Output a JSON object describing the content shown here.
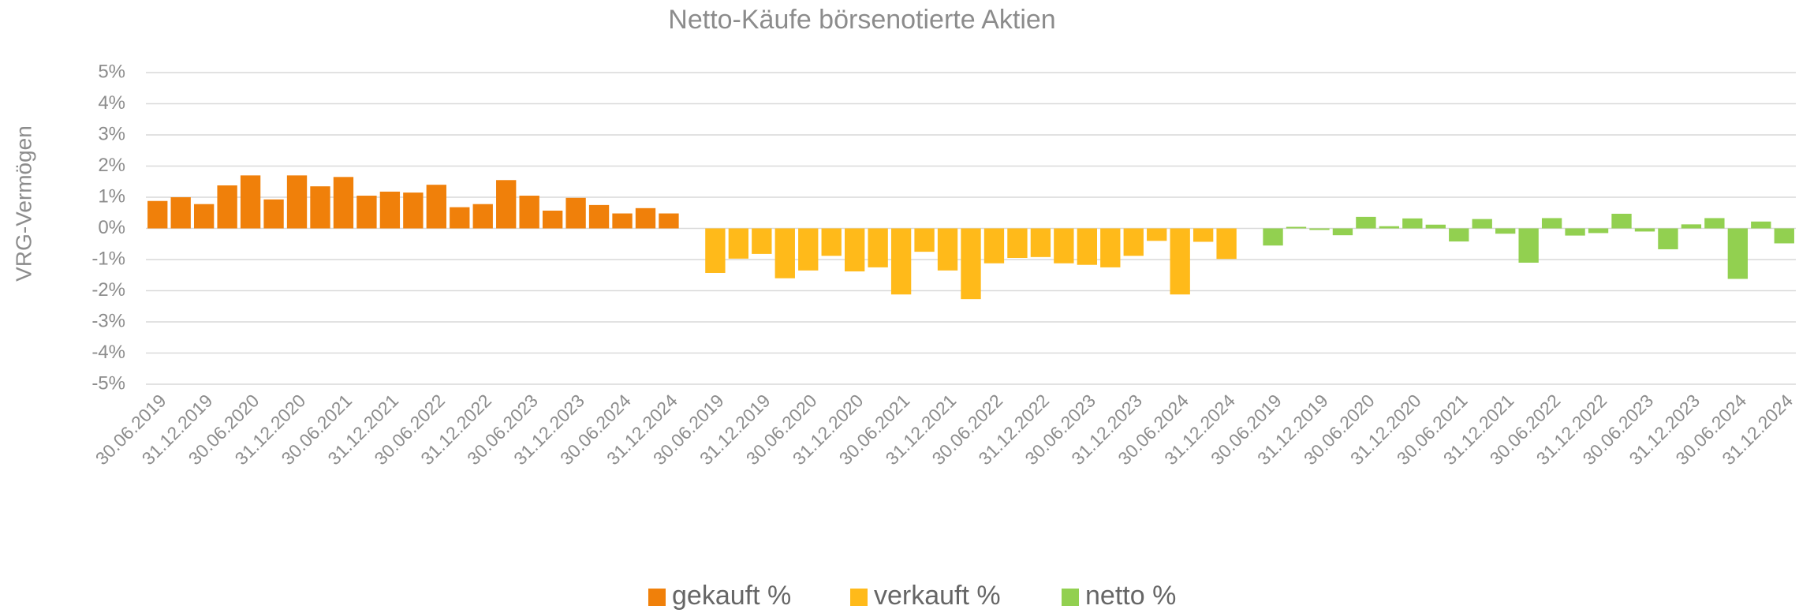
{
  "chart_data": {
    "type": "bar",
    "title": "Netto-Käufe börsenotierte Aktien",
    "y_label": "VRG-Vermögen",
    "categories": [
      "30.06.2019",
      null,
      "31.12.2019",
      null,
      "30.06.2020",
      null,
      "31.12.2020",
      null,
      "30.06.2021",
      null,
      "31.12.2021",
      null,
      "30.06.2022",
      null,
      "31.12.2022",
      null,
      "30.06.2023",
      null,
      "31.12.2023",
      null,
      "30.06.2024",
      null,
      "31.12.2024",
      null,
      "30.06.2019",
      null,
      "31.12.2019",
      null,
      "30.06.2020",
      null,
      "31.12.2020",
      null,
      "30.06.2021",
      null,
      "31.12.2021",
      null,
      "30.06.2022",
      null,
      "31.12.2022",
      null,
      "30.06.2023",
      null,
      "31.12.2023",
      null,
      "30.06.2024",
      null,
      "31.12.2024",
      null,
      "30.06.2019",
      null,
      "31.12.2019",
      null,
      "30.06.2020",
      null,
      "31.12.2020",
      null,
      "30.06.2021",
      null,
      "31.12.2021",
      null,
      "30.06.2022",
      null,
      "31.12.2022",
      null,
      "30.06.2023",
      null,
      "31.12.2023",
      null,
      "30.06.2024",
      null,
      "31.12.2024"
    ],
    "series": [
      {
        "name": "gekauft %",
        "color": "#f0800a",
        "values": [
          0.88,
          1.0,
          0.78,
          1.38,
          1.7,
          0.93,
          1.7,
          1.35,
          1.65,
          1.05,
          1.18,
          1.15,
          1.4,
          0.68,
          0.78,
          1.55,
          1.05,
          0.57,
          0.98,
          0.75,
          0.48,
          0.65,
          0.48,
          null,
          null,
          null,
          null,
          null,
          null,
          null,
          null,
          null,
          null,
          null,
          null,
          null,
          null,
          null,
          null,
          null,
          null,
          null,
          null,
          null,
          null,
          null,
          null,
          null,
          null,
          null,
          null,
          null,
          null,
          null,
          null,
          null,
          null,
          null,
          null,
          null,
          null,
          null,
          null,
          null,
          null,
          null,
          null,
          null,
          null,
          null,
          null
        ]
      },
      {
        "name": "verkauft %",
        "color": "#ffba1a",
        "values": [
          null,
          null,
          null,
          null,
          null,
          null,
          null,
          null,
          null,
          null,
          null,
          null,
          null,
          null,
          null,
          null,
          null,
          null,
          null,
          null,
          null,
          null,
          null,
          null,
          -1.43,
          -0.97,
          -0.82,
          -1.6,
          -1.35,
          -0.88,
          -1.38,
          -1.25,
          -2.12,
          -0.75,
          -1.35,
          -2.27,
          -1.12,
          -0.95,
          -0.92,
          -1.12,
          -1.17,
          -1.25,
          -0.88,
          -0.4,
          -2.12,
          -0.43,
          -0.98,
          null,
          null,
          null,
          null,
          null,
          null,
          null,
          null,
          null,
          null,
          null,
          null,
          null,
          null,
          null,
          null,
          null,
          null,
          null,
          null,
          null,
          null,
          null,
          null
        ]
      },
      {
        "name": "netto %",
        "color": "#92d050",
        "values": [
          null,
          null,
          null,
          null,
          null,
          null,
          null,
          null,
          null,
          null,
          null,
          null,
          null,
          null,
          null,
          null,
          null,
          null,
          null,
          null,
          null,
          null,
          null,
          null,
          null,
          null,
          null,
          null,
          null,
          null,
          null,
          null,
          null,
          null,
          null,
          null,
          null,
          null,
          null,
          null,
          null,
          null,
          null,
          null,
          null,
          null,
          null,
          null,
          -0.55,
          0.05,
          -0.05,
          -0.22,
          0.37,
          0.07,
          0.32,
          0.12,
          -0.42,
          0.3,
          -0.17,
          -1.1,
          0.33,
          -0.23,
          -0.15,
          0.47,
          -0.1,
          -0.67,
          0.13,
          0.33,
          -1.62,
          0.22,
          -0.48
        ]
      }
    ],
    "ylim": [
      -5,
      5
    ],
    "yticks": [
      {
        "value": -5,
        "label": "-5%"
      },
      {
        "value": -4,
        "label": "-4%"
      },
      {
        "value": -3,
        "label": "-3%"
      },
      {
        "value": -2,
        "label": "-2%"
      },
      {
        "value": -1,
        "label": "-1%"
      },
      {
        "value": 0,
        "label": "0%"
      },
      {
        "value": 1,
        "label": "1%"
      },
      {
        "value": 2,
        "label": "2%"
      },
      {
        "value": 3,
        "label": "3%"
      },
      {
        "value": 4,
        "label": "4%"
      },
      {
        "value": 5,
        "label": "5%"
      }
    ],
    "grid": true,
    "legend": "bottom"
  }
}
